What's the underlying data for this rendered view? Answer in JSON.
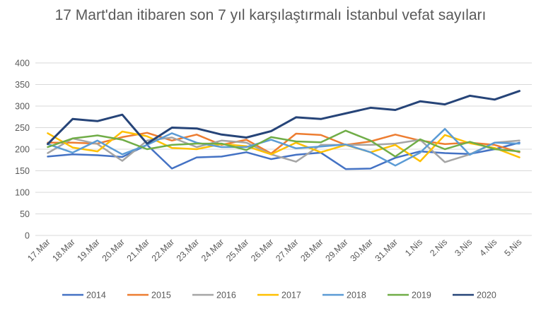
{
  "chart_data": {
    "type": "line",
    "title": "17 Mart'dan itibaren son 7 yıl karşılaştırmalı İstanbul vefat sayıları",
    "xlabel": "",
    "ylabel": "",
    "ylim": [
      0,
      400
    ],
    "yticks": [
      0,
      50,
      100,
      150,
      200,
      250,
      300,
      350,
      400
    ],
    "grid": true,
    "legend_position": "bottom",
    "categories": [
      "17.Mar",
      "18.Mar",
      "19.Mar",
      "20.Mar",
      "21.Mar",
      "22.Mar",
      "23.Mar",
      "24.Mar",
      "25.Mar",
      "26.Mar",
      "27.Mar",
      "28.Mar",
      "29.Mar",
      "30.Mar",
      "31.Mar",
      "1.Nis",
      "2.Nis",
      "3.Nis",
      "4.Nis",
      "5.Nis"
    ],
    "series": [
      {
        "name": "2014",
        "color": "#4472C4",
        "values": [
          183,
          188,
          186,
          182,
          210,
          155,
          181,
          183,
          193,
          177,
          187,
          192,
          154,
          155,
          180,
          195,
          191,
          189,
          200,
          215
        ]
      },
      {
        "name": "2015",
        "color": "#ED7D31",
        "values": [
          215,
          215,
          213,
          228,
          238,
          220,
          234,
          210,
          222,
          190,
          236,
          233,
          210,
          218,
          234,
          220,
          212,
          215,
          210,
          193
        ]
      },
      {
        "name": "2016",
        "color": "#A5A5A5",
        "values": [
          191,
          225,
          212,
          173,
          220,
          227,
          205,
          220,
          215,
          188,
          171,
          210,
          210,
          210,
          213,
          222,
          170,
          188,
          215,
          220
        ]
      },
      {
        "name": "2017",
        "color": "#FFC000",
        "values": [
          237,
          204,
          195,
          241,
          230,
          203,
          200,
          212,
          207,
          188,
          215,
          193,
          210,
          193,
          210,
          172,
          233,
          214,
          203,
          181
        ]
      },
      {
        "name": "2018",
        "color": "#5B9BD5",
        "values": [
          212,
          192,
          220,
          188,
          210,
          237,
          215,
          205,
          205,
          222,
          202,
          206,
          211,
          193,
          162,
          192,
          247,
          187,
          215,
          213
        ]
      },
      {
        "name": "2019",
        "color": "#70AD47",
        "values": [
          205,
          225,
          232,
          222,
          200,
          210,
          213,
          213,
          198,
          228,
          218,
          216,
          243,
          220,
          183,
          223,
          200,
          217,
          200,
          195
        ]
      },
      {
        "name": "2020",
        "color": "#264478",
        "values": [
          212,
          270,
          265,
          280,
          213,
          250,
          248,
          234,
          227,
          242,
          274,
          270,
          283,
          296,
          291,
          311,
          304,
          324,
          315,
          335
        ]
      }
    ]
  }
}
